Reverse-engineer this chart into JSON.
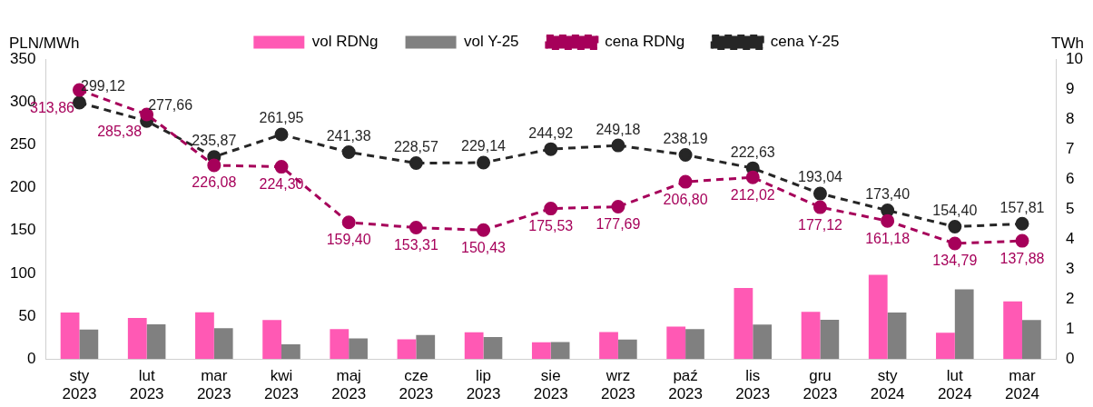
{
  "chart_data": {
    "type": "bar",
    "ylabel": "PLN/MWh",
    "y2label": "TWh",
    "categories": [
      "sty 2023",
      "lut 2023",
      "mar 2023",
      "kwi 2023",
      "maj 2023",
      "cze 2023",
      "lip 2023",
      "sie 2023",
      "wrz 2023",
      "paź 2023",
      "lis 2023",
      "gru 2023",
      "sty 2024",
      "lut 2024",
      "mar 2024"
    ],
    "series": [
      {
        "name": "vol RDNg",
        "axis": "y2",
        "color": "#ff59b4",
        "values": [
          1.55,
          1.37,
          1.56,
          1.3,
          1.0,
          0.66,
          0.89,
          0.56,
          0.9,
          1.08,
          2.37,
          1.57,
          2.81,
          0.88,
          1.92
        ]
      },
      {
        "name": "vol Y-25",
        "axis": "y2",
        "color": "#808080",
        "values": [
          0.98,
          1.16,
          1.03,
          0.49,
          0.69,
          0.8,
          0.73,
          0.57,
          0.65,
          1.0,
          1.15,
          1.31,
          1.55,
          2.32,
          1.3
        ]
      },
      {
        "name": "cena RDNg",
        "type": "line",
        "axis": "y",
        "color": "#a6005a",
        "line_style": "dashed",
        "marker": "circle",
        "values": [
          313.86,
          285.38,
          226.08,
          224.3,
          159.4,
          153.31,
          150.43,
          175.53,
          177.69,
          206.8,
          212.02,
          177.12,
          161.18,
          134.79,
          137.88
        ],
        "value_labels": [
          "313,86",
          "285,38",
          "226,08",
          "224,30",
          "159,40",
          "153,31",
          "150,43",
          "175,53",
          "177,69",
          "206,80",
          "212,02",
          "177,12",
          "161,18",
          "134,79",
          "137,88"
        ]
      },
      {
        "name": "cena Y-25",
        "type": "line",
        "axis": "y",
        "color": "#262626",
        "line_style": "dashed",
        "marker": "circle",
        "values": [
          299.12,
          277.66,
          235.87,
          261.95,
          241.38,
          228.57,
          229.14,
          244.92,
          249.18,
          238.19,
          222.63,
          193.04,
          173.4,
          154.4,
          157.81
        ],
        "value_labels": [
          "299,12",
          "277,66",
          "235,87",
          "261,95",
          "241,38",
          "228,57",
          "229,14",
          "244,92",
          "249,18",
          "238,19",
          "222,63",
          "193,04",
          "173,40",
          "154,40",
          "157,81"
        ]
      }
    ],
    "ylim": [
      0,
      350
    ],
    "yticks": [
      0,
      50,
      100,
      150,
      200,
      250,
      300,
      350
    ],
    "y2lim": [
      0,
      10
    ],
    "y2ticks": [
      0,
      1,
      2,
      3,
      4,
      5,
      6,
      7,
      8,
      9,
      10
    ],
    "grid": false,
    "legend": "top"
  }
}
